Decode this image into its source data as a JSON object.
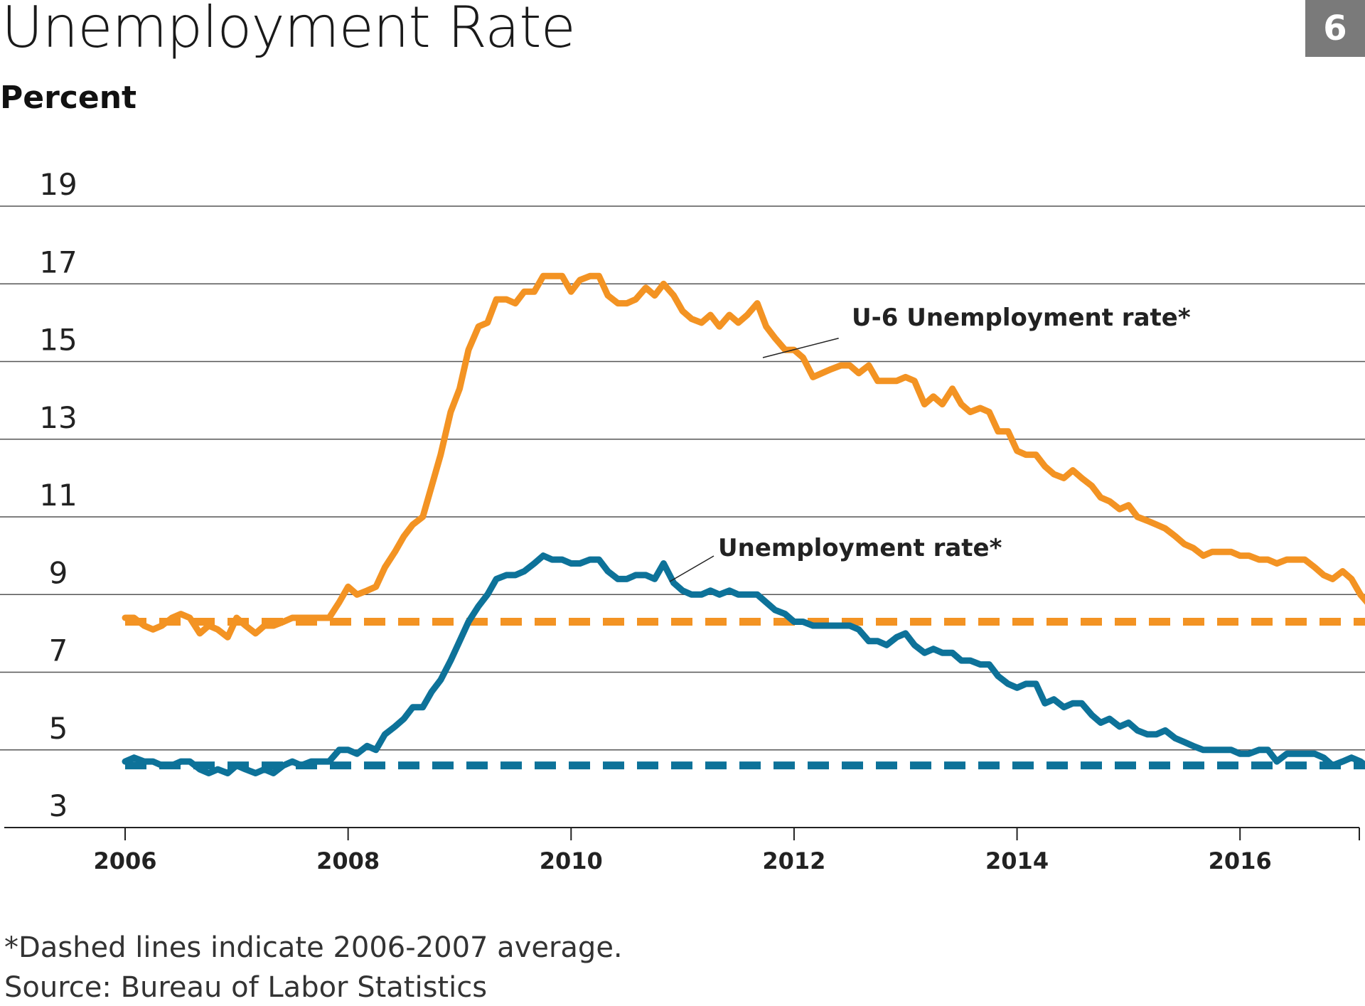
{
  "header": {
    "title": "Unemployment Rate",
    "badge": "6",
    "unit_label": "Percent"
  },
  "footer": {
    "note": "*Dashed lines indicate 2006-2007 average.",
    "source": "Source: Bureau of Labor Statistics"
  },
  "colors": {
    "u6": "#f39323",
    "unemployment": "#0d7299",
    "grid": "#555555",
    "badge": "#7a7a7a"
  },
  "chart_data": {
    "type": "line",
    "ylabel": "Percent",
    "xlabel": "",
    "xlim": [
      2006,
      2017.07
    ],
    "ylim": [
      3,
      19
    ],
    "y_ticks": [
      "19",
      "17",
      "15",
      "13",
      "11",
      "9",
      "7",
      "5",
      "3"
    ],
    "x_ticks": [
      "2006",
      "2008",
      "2010",
      "2012",
      "2014",
      "2016"
    ],
    "grid": true,
    "series": [
      {
        "name": "U-6 Unemployment rate*",
        "style": "solid",
        "color": "#f39323",
        "points": [
          [
            2006.0,
            8.4
          ],
          [
            2006.08,
            8.4
          ],
          [
            2006.17,
            8.2
          ],
          [
            2006.25,
            8.1
          ],
          [
            2006.33,
            8.2
          ],
          [
            2006.42,
            8.4
          ],
          [
            2006.5,
            8.5
          ],
          [
            2006.58,
            8.4
          ],
          [
            2006.67,
            8.0
          ],
          [
            2006.75,
            8.2
          ],
          [
            2006.83,
            8.1
          ],
          [
            2006.92,
            7.9
          ],
          [
            2007.0,
            8.4
          ],
          [
            2007.08,
            8.2
          ],
          [
            2007.17,
            8.0
          ],
          [
            2007.25,
            8.2
          ],
          [
            2007.33,
            8.2
          ],
          [
            2007.42,
            8.3
          ],
          [
            2007.5,
            8.4
          ],
          [
            2007.58,
            8.4
          ],
          [
            2007.67,
            8.4
          ],
          [
            2007.75,
            8.4
          ],
          [
            2007.83,
            8.4
          ],
          [
            2007.92,
            8.8
          ],
          [
            2008.0,
            9.2
          ],
          [
            2008.08,
            9.0
          ],
          [
            2008.17,
            9.1
          ],
          [
            2008.25,
            9.2
          ],
          [
            2008.33,
            9.7
          ],
          [
            2008.42,
            10.1
          ],
          [
            2008.5,
            10.5
          ],
          [
            2008.58,
            10.8
          ],
          [
            2008.67,
            11.0
          ],
          [
            2008.75,
            11.8
          ],
          [
            2008.83,
            12.6
          ],
          [
            2008.92,
            13.7
          ],
          [
            2009.0,
            14.3
          ],
          [
            2009.08,
            15.3
          ],
          [
            2009.17,
            15.9
          ],
          [
            2009.25,
            16.0
          ],
          [
            2009.33,
            16.6
          ],
          [
            2009.42,
            16.6
          ],
          [
            2009.5,
            16.5
          ],
          [
            2009.58,
            16.8
          ],
          [
            2009.67,
            16.8
          ],
          [
            2009.75,
            17.2
          ],
          [
            2009.83,
            17.2
          ],
          [
            2009.92,
            17.2
          ],
          [
            2010.0,
            16.8
          ],
          [
            2010.08,
            17.1
          ],
          [
            2010.17,
            17.2
          ],
          [
            2010.25,
            17.2
          ],
          [
            2010.33,
            16.7
          ],
          [
            2010.42,
            16.5
          ],
          [
            2010.5,
            16.5
          ],
          [
            2010.58,
            16.6
          ],
          [
            2010.67,
            16.9
          ],
          [
            2010.75,
            16.7
          ],
          [
            2010.83,
            17.0
          ],
          [
            2010.92,
            16.7
          ],
          [
            2011.0,
            16.3
          ],
          [
            2011.08,
            16.1
          ],
          [
            2011.17,
            16.0
          ],
          [
            2011.25,
            16.2
          ],
          [
            2011.33,
            15.9
          ],
          [
            2011.42,
            16.2
          ],
          [
            2011.5,
            16.0
          ],
          [
            2011.58,
            16.2
          ],
          [
            2011.67,
            16.5
          ],
          [
            2011.75,
            15.9
          ],
          [
            2011.83,
            15.6
          ],
          [
            2011.92,
            15.3
          ],
          [
            2012.0,
            15.3
          ],
          [
            2012.08,
            15.1
          ],
          [
            2012.17,
            14.6
          ],
          [
            2012.25,
            14.7
          ],
          [
            2012.33,
            14.8
          ],
          [
            2012.42,
            14.9
          ],
          [
            2012.5,
            14.9
          ],
          [
            2012.58,
            14.7
          ],
          [
            2012.67,
            14.9
          ],
          [
            2012.75,
            14.5
          ],
          [
            2012.83,
            14.5
          ],
          [
            2012.92,
            14.5
          ],
          [
            2013.0,
            14.6
          ],
          [
            2013.08,
            14.5
          ],
          [
            2013.17,
            13.9
          ],
          [
            2013.25,
            14.1
          ],
          [
            2013.33,
            13.9
          ],
          [
            2013.42,
            14.3
          ],
          [
            2013.5,
            13.9
          ],
          [
            2013.58,
            13.7
          ],
          [
            2013.67,
            13.8
          ],
          [
            2013.75,
            13.7
          ],
          [
            2013.83,
            13.2
          ],
          [
            2013.92,
            13.2
          ],
          [
            2014.0,
            12.7
          ],
          [
            2014.08,
            12.6
          ],
          [
            2014.17,
            12.6
          ],
          [
            2014.25,
            12.3
          ],
          [
            2014.33,
            12.1
          ],
          [
            2014.42,
            12.0
          ],
          [
            2014.5,
            12.2
          ],
          [
            2014.58,
            12.0
          ],
          [
            2014.67,
            11.8
          ],
          [
            2014.75,
            11.5
          ],
          [
            2014.83,
            11.4
          ],
          [
            2014.92,
            11.2
          ],
          [
            2015.0,
            11.3
          ],
          [
            2015.08,
            11.0
          ],
          [
            2015.17,
            10.9
          ],
          [
            2015.25,
            10.8
          ],
          [
            2015.33,
            10.7
          ],
          [
            2015.42,
            10.5
          ],
          [
            2015.5,
            10.3
          ],
          [
            2015.58,
            10.2
          ],
          [
            2015.67,
            10.0
          ],
          [
            2015.75,
            10.1
          ],
          [
            2015.83,
            10.1
          ],
          [
            2015.92,
            10.1
          ],
          [
            2016.0,
            10.0
          ],
          [
            2016.08,
            10.0
          ],
          [
            2016.17,
            9.9
          ],
          [
            2016.25,
            9.9
          ],
          [
            2016.33,
            9.8
          ],
          [
            2016.42,
            9.9
          ],
          [
            2016.5,
            9.9
          ],
          [
            2016.58,
            9.9
          ],
          [
            2016.67,
            9.7
          ],
          [
            2016.75,
            9.5
          ],
          [
            2016.83,
            9.4
          ],
          [
            2016.92,
            9.6
          ],
          [
            2017.0,
            9.4
          ],
          [
            2017.08,
            9.0
          ],
          [
            2017.17,
            8.7
          ],
          [
            2017.25,
            8.6
          ]
        ]
      },
      {
        "name": "Unemployment rate*",
        "style": "solid",
        "color": "#0d7299",
        "points": [
          [
            2006.0,
            4.7
          ],
          [
            2006.08,
            4.8
          ],
          [
            2006.17,
            4.7
          ],
          [
            2006.25,
            4.7
          ],
          [
            2006.33,
            4.6
          ],
          [
            2006.42,
            4.6
          ],
          [
            2006.5,
            4.7
          ],
          [
            2006.58,
            4.7
          ],
          [
            2006.67,
            4.5
          ],
          [
            2006.75,
            4.4
          ],
          [
            2006.83,
            4.5
          ],
          [
            2006.92,
            4.4
          ],
          [
            2007.0,
            4.6
          ],
          [
            2007.08,
            4.5
          ],
          [
            2007.17,
            4.4
          ],
          [
            2007.25,
            4.5
          ],
          [
            2007.33,
            4.4
          ],
          [
            2007.42,
            4.6
          ],
          [
            2007.5,
            4.7
          ],
          [
            2007.58,
            4.6
          ],
          [
            2007.67,
            4.7
          ],
          [
            2007.75,
            4.7
          ],
          [
            2007.83,
            4.7
          ],
          [
            2007.92,
            5.0
          ],
          [
            2008.0,
            5.0
          ],
          [
            2008.08,
            4.9
          ],
          [
            2008.17,
            5.1
          ],
          [
            2008.25,
            5.0
          ],
          [
            2008.33,
            5.4
          ],
          [
            2008.42,
            5.6
          ],
          [
            2008.5,
            5.8
          ],
          [
            2008.58,
            6.1
          ],
          [
            2008.67,
            6.1
          ],
          [
            2008.75,
            6.5
          ],
          [
            2008.83,
            6.8
          ],
          [
            2008.92,
            7.3
          ],
          [
            2009.0,
            7.8
          ],
          [
            2009.08,
            8.3
          ],
          [
            2009.17,
            8.7
          ],
          [
            2009.25,
            9.0
          ],
          [
            2009.33,
            9.4
          ],
          [
            2009.42,
            9.5
          ],
          [
            2009.5,
            9.5
          ],
          [
            2009.58,
            9.6
          ],
          [
            2009.67,
            9.8
          ],
          [
            2009.75,
            10.0
          ],
          [
            2009.83,
            9.9
          ],
          [
            2009.92,
            9.9
          ],
          [
            2010.0,
            9.8
          ],
          [
            2010.08,
            9.8
          ],
          [
            2010.17,
            9.9
          ],
          [
            2010.25,
            9.9
          ],
          [
            2010.33,
            9.6
          ],
          [
            2010.42,
            9.4
          ],
          [
            2010.5,
            9.4
          ],
          [
            2010.58,
            9.5
          ],
          [
            2010.67,
            9.5
          ],
          [
            2010.75,
            9.4
          ],
          [
            2010.83,
            9.8
          ],
          [
            2010.92,
            9.3
          ],
          [
            2011.0,
            9.1
          ],
          [
            2011.08,
            9.0
          ],
          [
            2011.17,
            9.0
          ],
          [
            2011.25,
            9.1
          ],
          [
            2011.33,
            9.0
          ],
          [
            2011.42,
            9.1
          ],
          [
            2011.5,
            9.0
          ],
          [
            2011.58,
            9.0
          ],
          [
            2011.67,
            9.0
          ],
          [
            2011.75,
            8.8
          ],
          [
            2011.83,
            8.6
          ],
          [
            2011.92,
            8.5
          ],
          [
            2012.0,
            8.3
          ],
          [
            2012.08,
            8.3
          ],
          [
            2012.17,
            8.2
          ],
          [
            2012.25,
            8.2
          ],
          [
            2012.33,
            8.2
          ],
          [
            2012.42,
            8.2
          ],
          [
            2012.5,
            8.2
          ],
          [
            2012.58,
            8.1
          ],
          [
            2012.67,
            7.8
          ],
          [
            2012.75,
            7.8
          ],
          [
            2012.83,
            7.7
          ],
          [
            2012.92,
            7.9
          ],
          [
            2013.0,
            8.0
          ],
          [
            2013.08,
            7.7
          ],
          [
            2013.17,
            7.5
          ],
          [
            2013.25,
            7.6
          ],
          [
            2013.33,
            7.5
          ],
          [
            2013.42,
            7.5
          ],
          [
            2013.5,
            7.3
          ],
          [
            2013.58,
            7.3
          ],
          [
            2013.67,
            7.2
          ],
          [
            2013.75,
            7.2
          ],
          [
            2013.83,
            6.9
          ],
          [
            2013.92,
            6.7
          ],
          [
            2014.0,
            6.6
          ],
          [
            2014.08,
            6.7
          ],
          [
            2014.17,
            6.7
          ],
          [
            2014.25,
            6.2
          ],
          [
            2014.33,
            6.3
          ],
          [
            2014.42,
            6.1
          ],
          [
            2014.5,
            6.2
          ],
          [
            2014.58,
            6.2
          ],
          [
            2014.67,
            5.9
          ],
          [
            2014.75,
            5.7
          ],
          [
            2014.83,
            5.8
          ],
          [
            2014.92,
            5.6
          ],
          [
            2015.0,
            5.7
          ],
          [
            2015.08,
            5.5
          ],
          [
            2015.17,
            5.4
          ],
          [
            2015.25,
            5.4
          ],
          [
            2015.33,
            5.5
          ],
          [
            2015.42,
            5.3
          ],
          [
            2015.5,
            5.2
          ],
          [
            2015.58,
            5.1
          ],
          [
            2015.67,
            5.0
          ],
          [
            2015.75,
            5.0
          ],
          [
            2015.83,
            5.0
          ],
          [
            2015.92,
            5.0
          ],
          [
            2016.0,
            4.9
          ],
          [
            2016.08,
            4.9
          ],
          [
            2016.17,
            5.0
          ],
          [
            2016.25,
            5.0
          ],
          [
            2016.33,
            4.7
          ],
          [
            2016.42,
            4.9
          ],
          [
            2016.5,
            4.9
          ],
          [
            2016.58,
            4.9
          ],
          [
            2016.67,
            4.9
          ],
          [
            2016.75,
            4.8
          ],
          [
            2016.83,
            4.6
          ],
          [
            2016.92,
            4.7
          ],
          [
            2017.0,
            4.8
          ],
          [
            2017.08,
            4.7
          ],
          [
            2017.17,
            4.5
          ],
          [
            2017.25,
            4.4
          ],
          [
            2017.33,
            4.3
          ]
        ]
      }
    ],
    "reference_lines": [
      {
        "series": "U-6 Unemployment rate*",
        "value": 8.3,
        "style": "dashed",
        "color": "#f39323"
      },
      {
        "series": "Unemployment rate*",
        "value": 4.6,
        "style": "dashed",
        "color": "#0d7299"
      }
    ],
    "annotations": [
      {
        "text": "U-6 Unemployment rate*",
        "x": 2011.9,
        "y": 15.2
      },
      {
        "text": "Unemployment rate*",
        "x": 2010.85,
        "y": 9.3
      }
    ]
  }
}
